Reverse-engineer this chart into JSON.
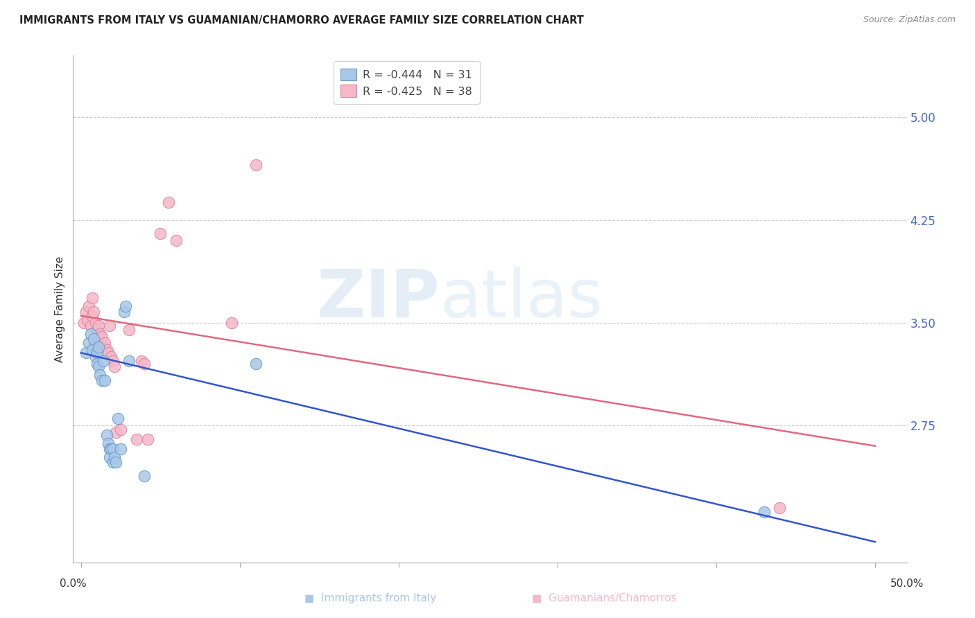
{
  "title": "IMMIGRANTS FROM ITALY VS GUAMANIAN/CHAMORRO AVERAGE FAMILY SIZE CORRELATION CHART",
  "source": "Source: ZipAtlas.com",
  "ylabel": "Average Family Size",
  "ytick_values": [
    2.75,
    3.5,
    4.25,
    5.0
  ],
  "ytick_labels": [
    "2.75",
    "3.50",
    "4.25",
    "5.00"
  ],
  "xtick_positions": [
    0.0,
    0.1,
    0.2,
    0.3,
    0.4,
    0.5
  ],
  "xlim": [
    -0.005,
    0.52
  ],
  "ylim": [
    1.75,
    5.45
  ],
  "blue_color": "#a8c8e8",
  "blue_edge_color": "#6699cc",
  "pink_color": "#f5b8c8",
  "pink_edge_color": "#e080a0",
  "blue_line_color": "#3355cc",
  "pink_line_color": "#e06880",
  "legend_r1_text": "R = ",
  "legend_r1_val": "-0.444",
  "legend_n1_text": "   N = ",
  "legend_n1_val": "31",
  "legend_r2_text": "R = ",
  "legend_r2_val": "-0.425",
  "legend_n2_text": "   N = ",
  "legend_n2_val": "38",
  "blue_label": "Immigrants from Italy",
  "pink_label": "Guamanians/Chamorros",
  "blue_scatter_x": [
    0.003,
    0.005,
    0.006,
    0.007,
    0.008,
    0.009,
    0.01,
    0.01,
    0.011,
    0.011,
    0.012,
    0.013,
    0.014,
    0.015,
    0.016,
    0.017,
    0.018,
    0.018,
    0.019,
    0.02,
    0.02,
    0.021,
    0.022,
    0.023,
    0.025,
    0.027,
    0.028,
    0.03,
    0.04,
    0.11,
    0.43
  ],
  "blue_scatter_y": [
    3.28,
    3.35,
    3.42,
    3.3,
    3.38,
    3.25,
    3.2,
    3.28,
    3.18,
    3.32,
    3.12,
    3.08,
    3.22,
    3.08,
    2.68,
    2.62,
    2.58,
    2.52,
    2.58,
    2.48,
    2.58,
    2.52,
    2.48,
    2.8,
    2.58,
    3.58,
    3.62,
    3.22,
    2.38,
    3.2,
    2.12
  ],
  "pink_scatter_x": [
    0.002,
    0.003,
    0.004,
    0.005,
    0.006,
    0.007,
    0.007,
    0.008,
    0.008,
    0.009,
    0.01,
    0.01,
    0.011,
    0.011,
    0.012,
    0.013,
    0.013,
    0.014,
    0.015,
    0.016,
    0.017,
    0.018,
    0.019,
    0.02,
    0.021,
    0.022,
    0.025,
    0.03,
    0.035,
    0.038,
    0.04,
    0.042,
    0.05,
    0.055,
    0.06,
    0.095,
    0.11,
    0.44
  ],
  "pink_scatter_y": [
    3.5,
    3.58,
    3.52,
    3.62,
    3.48,
    3.55,
    3.68,
    3.58,
    3.32,
    3.5,
    3.45,
    3.4,
    3.38,
    3.48,
    3.42,
    3.4,
    3.32,
    3.32,
    3.35,
    3.3,
    3.28,
    3.48,
    3.25,
    3.22,
    3.18,
    2.7,
    2.72,
    3.45,
    2.65,
    3.22,
    3.2,
    2.65,
    4.15,
    4.38,
    4.1,
    3.5,
    4.65,
    2.15
  ],
  "blue_trend_x": [
    0.0,
    0.5
  ],
  "blue_trend_y": [
    3.28,
    1.9
  ],
  "pink_trend_x": [
    0.0,
    0.5
  ],
  "pink_trend_y": [
    3.55,
    2.6
  ],
  "grid_color": "#cccccc",
  "spine_color": "#aaaaaa",
  "right_tick_color": "#4466cc",
  "watermark_zip": "ZIP",
  "watermark_atlas": "atlas"
}
